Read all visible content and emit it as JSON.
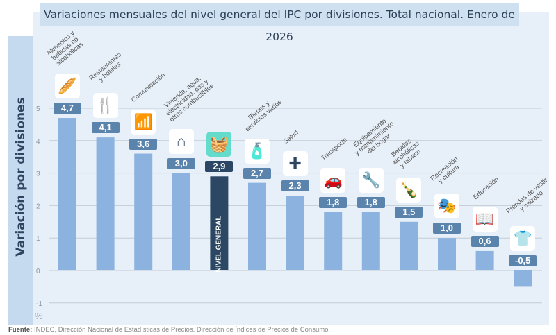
{
  "title": "Variaciones mensuales del nivel general del IPC por divisiones. Total nacional. Enero de 2026",
  "footer": {
    "label": "Fuente:",
    "text": " INDEC, Dirección Nacional de Estadísticas de Precios. Dirección de Índices de Precios de Consumo."
  },
  "colors": {
    "bar": "#8cb3e0",
    "highlight_bar": "#2c4763",
    "value_box": "#5b84ad",
    "highlight_icon_box": "#63dccb"
  },
  "chart_data": {
    "type": "bar",
    "title": "Variaciones mensuales del nivel general del IPC por divisiones. Total nacional. Enero de 2026",
    "ylabel": "Variación por divisiones",
    "yunit": "%",
    "ylim": [
      -1,
      5
    ],
    "yticks": [
      "-1",
      "0",
      "1",
      "2",
      "3",
      "4",
      "5"
    ],
    "grid": true,
    "categories": [
      "Alimentos y\nbebidas no\nalcohólicas",
      "Restaurantes\ny hoteles",
      "Comunicación",
      "Vivienda, agua,\nelectricidad, gas y\notros combustibles",
      "NIVEL GENERAL",
      "Bienes y\nservicios varios",
      "Salud",
      "Transporte",
      "Equipamiento\ny mantenimiento\ndel hogar",
      "Bebidas\nalcohólicas\ny tabaco",
      "Recreación\ny cultura",
      "Educación",
      "Prendas de vestir\ny calzado"
    ],
    "values": [
      4.7,
      4.1,
      3.6,
      3.0,
      2.9,
      2.7,
      2.3,
      1.8,
      1.8,
      1.5,
      1.0,
      0.6,
      -0.5
    ],
    "labels": [
      "4,7",
      "4,1",
      "3,6",
      "3,0",
      "2,9",
      "2,7",
      "2,3",
      "1,8",
      "1,8",
      "1,5",
      "1,0",
      "0,6",
      "-0,5"
    ],
    "icons": [
      "food-basket-icon",
      "restaurant-hotel-icon",
      "wifi-icon",
      "house-utilities-icon",
      "shopping-basket-icon",
      "personal-care-icon",
      "health-cross-icon",
      "car-icon",
      "tools-icon",
      "bottle-glass-icon",
      "theater-masks-icon",
      "book-icon",
      "tshirt-icon"
    ],
    "highlight": "NIVEL GENERAL"
  }
}
